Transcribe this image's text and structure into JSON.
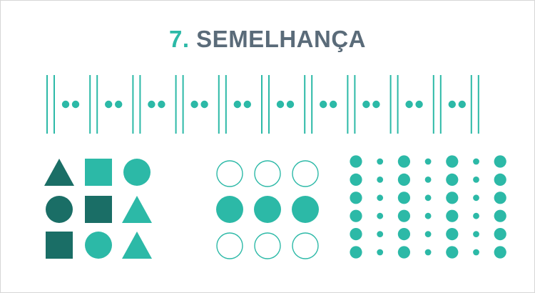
{
  "title": {
    "number": "7.",
    "text": "SEMELHANÇA"
  },
  "colors": {
    "accent": "#2cb9a7",
    "dark": "#1a6e66",
    "title_text": "#5a6b79",
    "background": "#ffffff"
  },
  "strip": {
    "groups": 10,
    "bars_per_side": 2,
    "dots_per_group": 2
  },
  "shape_grid": {
    "rows": [
      [
        {
          "shape": "triangle",
          "tone": "dark"
        },
        {
          "shape": "square",
          "tone": "accent"
        },
        {
          "shape": "circle",
          "tone": "accent"
        }
      ],
      [
        {
          "shape": "circle",
          "tone": "dark"
        },
        {
          "shape": "square",
          "tone": "dark"
        },
        {
          "shape": "triangle",
          "tone": "accent"
        }
      ],
      [
        {
          "shape": "square",
          "tone": "dark"
        },
        {
          "shape": "circle",
          "tone": "accent"
        },
        {
          "shape": "triangle",
          "tone": "accent"
        }
      ]
    ]
  },
  "circle_grid": {
    "rows": [
      [
        "outline",
        "outline",
        "outline"
      ],
      [
        "filled",
        "filled",
        "filled"
      ],
      [
        "outline",
        "outline",
        "outline"
      ]
    ]
  },
  "dot_grid": {
    "rows": 6,
    "columns": [
      "large",
      "small",
      "large",
      "small",
      "large",
      "small",
      "large"
    ]
  }
}
